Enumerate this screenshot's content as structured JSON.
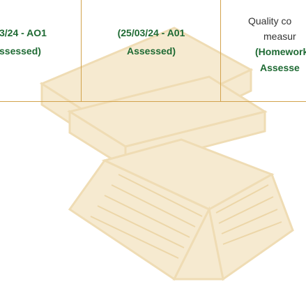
{
  "table": {
    "rows": [
      {
        "cells": [
          {
            "assessment": [
              "3/24 - AO1",
              "ssessed)"
            ]
          },
          {
            "assessment": [
              "(25/03/24 - A01",
              "Assessed)"
            ]
          },
          {
            "description": [
              "Quality co",
              "measur"
            ],
            "assessment": [
              "(Homework",
              "Assesse"
            ]
          }
        ]
      }
    ]
  }
}
